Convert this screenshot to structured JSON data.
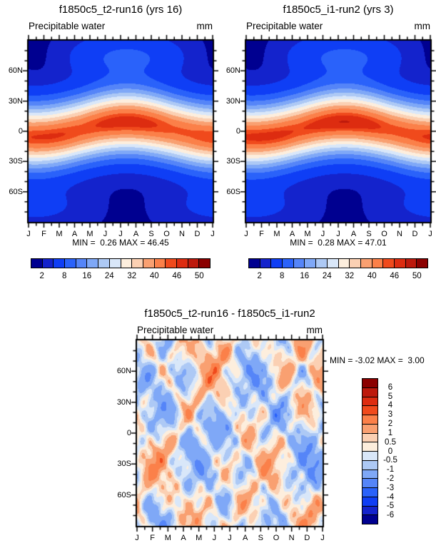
{
  "figure": {
    "background": "#ffffff"
  },
  "months": [
    "J",
    "F",
    "M",
    "A",
    "M",
    "J",
    "J",
    "A",
    "S",
    "O",
    "N",
    "D",
    "J"
  ],
  "lat_labels": [
    {
      "text": "60N",
      "lat": 60
    },
    {
      "text": "30N",
      "lat": 30
    },
    {
      "text": "0",
      "lat": 0
    },
    {
      "text": "30S",
      "lat": -30
    },
    {
      "text": "60S",
      "lat": -60
    }
  ],
  "palette_ascending": [
    "#000090",
    "#1423cc",
    "#0f3ef5",
    "#2a62fa",
    "#5585f8",
    "#7fa8f7",
    "#adc9f5",
    "#d9e7f9",
    "#fdeedd",
    "#fbd0b3",
    "#f9a071",
    "#fb8049",
    "#f04a1c",
    "#dd2c10",
    "#bd190c",
    "#8b0000"
  ],
  "panels": [
    {
      "title": "f1850c5_t2-run16 (yrs 16)",
      "var_label": "Precipitable water",
      "units": "mm",
      "minmax": "MIN =  0.26 MAX = 46.45",
      "min": 0.26,
      "max": 46.45,
      "colorbar": {
        "levels": [
          2,
          4,
          8,
          12,
          16,
          20,
          24,
          28,
          32,
          36,
          40,
          44,
          46,
          48,
          50
        ],
        "tick_labels": [
          "2",
          "8",
          "16",
          "24",
          "32",
          "40",
          "46",
          "50"
        ]
      }
    },
    {
      "title": "f1850c5_i1-run2 (yrs 3)",
      "var_label": "Precipitable water",
      "units": "mm",
      "minmax": "MIN =  0.28 MAX = 47.01",
      "min": 0.28,
      "max": 47.01,
      "colorbar": {
        "levels": [
          2,
          4,
          8,
          12,
          16,
          20,
          24,
          28,
          32,
          36,
          40,
          44,
          46,
          48,
          50
        ],
        "tick_labels": [
          "2",
          "8",
          "16",
          "24",
          "32",
          "40",
          "46",
          "50"
        ]
      }
    },
    {
      "title": "f1850c5_t2-run16 - f1850c5_i1-run2",
      "var_label": "Precipitable water",
      "units": "mm",
      "minmax": "MIN = -3.02 MAX =  3.00",
      "min": -3.02,
      "max": 3.0,
      "colorbar": {
        "levels": [
          -6,
          -5,
          -4,
          -3,
          -2,
          -1,
          -0.5,
          0,
          0.5,
          1,
          2,
          3,
          4,
          5,
          6
        ],
        "tick_labels": [
          "6",
          "5",
          "4",
          "3",
          "2",
          "1",
          "0.5",
          "0",
          "-0.5",
          "-1",
          "-2",
          "-3",
          "-4",
          "-5",
          "-6"
        ]
      }
    }
  ],
  "chart_data": [
    {
      "type": "contour",
      "title": "f1850c5_t2-run16 (yrs 16)",
      "variable": "Precipitable water",
      "units": "mm",
      "x": [
        "J",
        "F",
        "M",
        "A",
        "M",
        "J",
        "J",
        "A",
        "S",
        "O",
        "N",
        "D",
        "J"
      ],
      "y_ticks": [
        "60N",
        "30N",
        "0",
        "30S",
        "60S"
      ],
      "y_range_deg": [
        -90,
        90
      ],
      "levels": [
        2,
        4,
        8,
        12,
        16,
        20,
        24,
        28,
        32,
        36,
        40,
        44,
        46,
        48,
        50
      ],
      "min": 0.26,
      "max": 46.45,
      "grid_lats": [
        90,
        60,
        30,
        0,
        -30,
        -60,
        -90
      ],
      "values_estimated": [
        [
          2,
          2,
          2,
          3,
          4,
          5,
          6,
          6,
          5,
          4,
          3,
          2,
          2
        ],
        [
          2,
          2,
          3,
          4,
          7,
          10,
          13,
          12,
          9,
          6,
          4,
          3,
          2
        ],
        [
          12,
          12,
          13,
          17,
          23,
          30,
          34,
          33,
          28,
          21,
          15,
          12,
          12
        ],
        [
          43,
          43,
          43,
          42,
          42,
          43,
          45,
          46,
          45,
          44,
          43,
          43,
          43
        ],
        [
          22,
          22,
          21,
          18,
          15,
          13,
          12,
          12,
          13,
          16,
          19,
          21,
          22
        ],
        [
          4,
          4,
          3,
          3,
          2,
          2,
          2,
          2,
          2,
          3,
          3,
          4,
          4
        ],
        [
          2,
          2,
          2,
          2,
          2,
          2,
          2,
          2,
          2,
          2,
          2,
          2,
          2
        ]
      ]
    },
    {
      "type": "contour",
      "title": "f1850c5_i1-run2 (yrs 3)",
      "variable": "Precipitable water",
      "units": "mm",
      "x": [
        "J",
        "F",
        "M",
        "A",
        "M",
        "J",
        "J",
        "A",
        "S",
        "O",
        "N",
        "D",
        "J"
      ],
      "y_ticks": [
        "60N",
        "30N",
        "0",
        "30S",
        "60S"
      ],
      "y_range_deg": [
        -90,
        90
      ],
      "levels": [
        2,
        4,
        8,
        12,
        16,
        20,
        24,
        28,
        32,
        36,
        40,
        44,
        46,
        48,
        50
      ],
      "min": 0.28,
      "max": 47.01,
      "grid_lats": [
        90,
        60,
        30,
        0,
        -30,
        -60,
        -90
      ],
      "values_estimated": [
        [
          2,
          2,
          2,
          3,
          4,
          5,
          6,
          6,
          5,
          4,
          3,
          2,
          2
        ],
        [
          2,
          2,
          3,
          4,
          7,
          10,
          13,
          12,
          9,
          6,
          4,
          3,
          2
        ],
        [
          12,
          12,
          13,
          17,
          23,
          30,
          35,
          33,
          28,
          21,
          15,
          12,
          12
        ],
        [
          43,
          43,
          43,
          42,
          42,
          43,
          46,
          47,
          45,
          44,
          43,
          43,
          43
        ],
        [
          22,
          22,
          21,
          18,
          15,
          13,
          12,
          12,
          13,
          16,
          19,
          21,
          22
        ],
        [
          4,
          4,
          3,
          3,
          2,
          2,
          2,
          2,
          2,
          3,
          3,
          4,
          4
        ],
        [
          2,
          2,
          2,
          2,
          2,
          2,
          2,
          2,
          2,
          2,
          2,
          2,
          2
        ]
      ]
    },
    {
      "type": "contour",
      "title": "f1850c5_t2-run16 - f1850c5_i1-run2",
      "variable": "Precipitable water",
      "units": "mm",
      "x": [
        "J",
        "F",
        "M",
        "A",
        "M",
        "J",
        "J",
        "A",
        "S",
        "O",
        "N",
        "D",
        "J"
      ],
      "y_ticks": [
        "60N",
        "30N",
        "0",
        "30S",
        "60S"
      ],
      "y_range_deg": [
        -90,
        90
      ],
      "levels": [
        -6,
        -5,
        -4,
        -3,
        -2,
        -1,
        -0.5,
        0,
        0.5,
        1,
        2,
        3,
        4,
        5,
        6
      ],
      "min": -3.02,
      "max": 3.0,
      "description": "irregular difference anomalies, mostly within ±3 mm"
    }
  ]
}
